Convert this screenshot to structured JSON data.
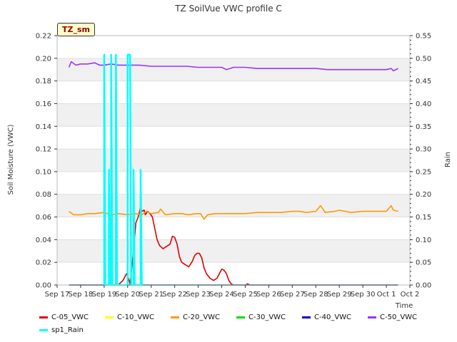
{
  "chart_data": {
    "type": "line",
    "title": "TZ SoilVue VWC profile C",
    "station_label": "TZ_sm",
    "xlabel": "Time",
    "ylabel_left": "Soil Moisture (VWC)",
    "ylabel_right": "Rain",
    "x_range": [
      0,
      15
    ],
    "x_tick_labels": [
      "Sep 17",
      "Sep 18",
      "Sep 19",
      "Sep 20",
      "Sep 21",
      "Sep 22",
      "Sep 23",
      "Sep 24",
      "Sep 25",
      "Sep 26",
      "Sep 27",
      "Sep 28",
      "Sep 29",
      "Sep 30",
      "Oct 1",
      "Oct 2"
    ],
    "y_left_range": [
      0,
      0.22
    ],
    "y_left_ticks": [
      "0.00",
      "0.02",
      "0.04",
      "0.06",
      "0.08",
      "0.10",
      "0.12",
      "0.14",
      "0.16",
      "0.18",
      "0.20",
      "0.22"
    ],
    "y_right_range": [
      0,
      0.55
    ],
    "y_right_ticks": [
      "0.00",
      "0.05",
      "0.10",
      "0.15",
      "0.20",
      "0.25",
      "0.30",
      "0.35",
      "0.40",
      "0.45",
      "0.50",
      "0.55"
    ],
    "grid": "horizontal bands",
    "legend_position": "bottom",
    "series": [
      {
        "name": "C-05_VWC",
        "color": "#dd0000",
        "axis": "left",
        "points": [
          [
            0.5,
            0
          ],
          [
            2.6,
            0
          ],
          [
            2.8,
            0.004
          ],
          [
            2.95,
            0.01
          ],
          [
            3.05,
            0.005
          ],
          [
            3.1,
            0.001
          ],
          [
            3.15,
            0.01
          ],
          [
            3.25,
            0.03
          ],
          [
            3.35,
            0.055
          ],
          [
            3.45,
            0.06
          ],
          [
            3.55,
            0.069
          ],
          [
            3.6,
            0.065
          ],
          [
            3.7,
            0.066
          ],
          [
            3.75,
            0.062
          ],
          [
            3.85,
            0.065
          ],
          [
            3.95,
            0.063
          ],
          [
            4.05,
            0.06
          ],
          [
            4.15,
            0.05
          ],
          [
            4.25,
            0.04
          ],
          [
            4.35,
            0.035
          ],
          [
            4.5,
            0.032
          ],
          [
            4.65,
            0.034
          ],
          [
            4.8,
            0.036
          ],
          [
            4.9,
            0.043
          ],
          [
            5.0,
            0.042
          ],
          [
            5.1,
            0.036
          ],
          [
            5.2,
            0.025
          ],
          [
            5.3,
            0.02
          ],
          [
            5.45,
            0.018
          ],
          [
            5.6,
            0.016
          ],
          [
            5.75,
            0.021
          ],
          [
            5.85,
            0.026
          ],
          [
            5.95,
            0.028
          ],
          [
            6.05,
            0.028
          ],
          [
            6.15,
            0.024
          ],
          [
            6.25,
            0.015
          ],
          [
            6.35,
            0.01
          ],
          [
            6.5,
            0.006
          ],
          [
            6.65,
            0.004
          ],
          [
            6.8,
            0.006
          ],
          [
            6.9,
            0.01
          ],
          [
            7.0,
            0.014
          ],
          [
            7.1,
            0.013
          ],
          [
            7.2,
            0.01
          ],
          [
            7.3,
            0.004
          ],
          [
            7.4,
            0.001
          ],
          [
            7.5,
            0
          ],
          [
            8.0,
            0
          ],
          [
            8.1,
            0.001
          ],
          [
            8.2,
            0
          ],
          [
            14.5,
            0
          ]
        ]
      },
      {
        "name": "C-10_VWC",
        "color": "#ffff00",
        "axis": "left",
        "points": [
          [
            0.5,
            0
          ],
          [
            14.5,
            0
          ]
        ]
      },
      {
        "name": "C-20_VWC",
        "color": "#ff9900",
        "axis": "left",
        "points": [
          [
            0.5,
            0.065
          ],
          [
            0.7,
            0.062
          ],
          [
            1.0,
            0.062
          ],
          [
            1.3,
            0.063
          ],
          [
            1.6,
            0.063
          ],
          [
            2.0,
            0.064
          ],
          [
            2.3,
            0.062
          ],
          [
            2.6,
            0.063
          ],
          [
            3.0,
            0.062
          ],
          [
            3.3,
            0.063
          ],
          [
            3.6,
            0.062
          ],
          [
            3.8,
            0.065
          ],
          [
            4.0,
            0.063
          ],
          [
            4.3,
            0.064
          ],
          [
            4.4,
            0.067
          ],
          [
            4.6,
            0.062
          ],
          [
            5.0,
            0.063
          ],
          [
            5.3,
            0.063
          ],
          [
            5.6,
            0.062
          ],
          [
            5.9,
            0.063
          ],
          [
            6.1,
            0.063
          ],
          [
            6.25,
            0.058
          ],
          [
            6.4,
            0.062
          ],
          [
            6.7,
            0.063
          ],
          [
            7.0,
            0.063
          ],
          [
            7.5,
            0.063
          ],
          [
            8.0,
            0.063
          ],
          [
            8.5,
            0.064
          ],
          [
            9.0,
            0.064
          ],
          [
            9.5,
            0.064
          ],
          [
            10.0,
            0.065
          ],
          [
            10.3,
            0.065
          ],
          [
            10.6,
            0.064
          ],
          [
            11.0,
            0.065
          ],
          [
            11.2,
            0.07
          ],
          [
            11.4,
            0.064
          ],
          [
            11.8,
            0.065
          ],
          [
            12.0,
            0.066
          ],
          [
            12.5,
            0.064
          ],
          [
            13.0,
            0.065
          ],
          [
            13.5,
            0.065
          ],
          [
            14.0,
            0.065
          ],
          [
            14.2,
            0.07
          ],
          [
            14.3,
            0.066
          ],
          [
            14.5,
            0.065
          ]
        ]
      },
      {
        "name": "C-30_VWC",
        "color": "#00dd00",
        "axis": "left",
        "points": [
          [
            0.5,
            0
          ],
          [
            14.5,
            0
          ]
        ]
      },
      {
        "name": "C-40_VWC",
        "color": "#0000cc",
        "axis": "left",
        "points": [
          [
            0.5,
            0
          ],
          [
            14.5,
            0
          ]
        ]
      },
      {
        "name": "C-50_VWC",
        "color": "#9933ff",
        "axis": "left",
        "points": [
          [
            0.5,
            0.192
          ],
          [
            0.6,
            0.197
          ],
          [
            0.8,
            0.194
          ],
          [
            1.0,
            0.195
          ],
          [
            1.3,
            0.195
          ],
          [
            1.6,
            0.196
          ],
          [
            1.8,
            0.194
          ],
          [
            2.0,
            0.194
          ],
          [
            2.3,
            0.195
          ],
          [
            2.6,
            0.194
          ],
          [
            3.0,
            0.194
          ],
          [
            3.5,
            0.194
          ],
          [
            4.0,
            0.193
          ],
          [
            4.5,
            0.193
          ],
          [
            5.0,
            0.193
          ],
          [
            5.5,
            0.193
          ],
          [
            6.0,
            0.192
          ],
          [
            6.5,
            0.192
          ],
          [
            7.0,
            0.192
          ],
          [
            7.2,
            0.19
          ],
          [
            7.5,
            0.192
          ],
          [
            8.0,
            0.192
          ],
          [
            8.5,
            0.191
          ],
          [
            9.0,
            0.191
          ],
          [
            9.5,
            0.191
          ],
          [
            10.0,
            0.191
          ],
          [
            10.5,
            0.191
          ],
          [
            11.0,
            0.191
          ],
          [
            11.5,
            0.19
          ],
          [
            12.0,
            0.19
          ],
          [
            12.5,
            0.19
          ],
          [
            13.0,
            0.19
          ],
          [
            13.5,
            0.19
          ],
          [
            14.0,
            0.19
          ],
          [
            14.2,
            0.191
          ],
          [
            14.3,
            0.189
          ],
          [
            14.5,
            0.191
          ]
        ]
      },
      {
        "name": "sp1_Rain",
        "color": "#00ffff",
        "axis": "right",
        "points": [
          [
            2.0,
            0
          ],
          [
            2.0,
            0.508
          ],
          [
            2.05,
            0
          ],
          [
            2.2,
            0
          ],
          [
            2.2,
            0.254
          ],
          [
            2.25,
            0
          ],
          [
            2.3,
            0
          ],
          [
            2.3,
            0.508
          ],
          [
            2.35,
            0
          ],
          [
            2.5,
            0
          ],
          [
            2.5,
            0.508
          ],
          [
            2.55,
            0
          ],
          [
            3.0,
            0
          ],
          [
            3.0,
            0.508
          ],
          [
            3.05,
            0.508
          ],
          [
            3.1,
            0.508
          ],
          [
            3.15,
            0
          ],
          [
            3.25,
            0
          ],
          [
            3.25,
            0.254
          ],
          [
            3.3,
            0
          ],
          [
            3.55,
            0
          ],
          [
            3.55,
            0.254
          ],
          [
            3.6,
            0
          ]
        ]
      }
    ]
  }
}
